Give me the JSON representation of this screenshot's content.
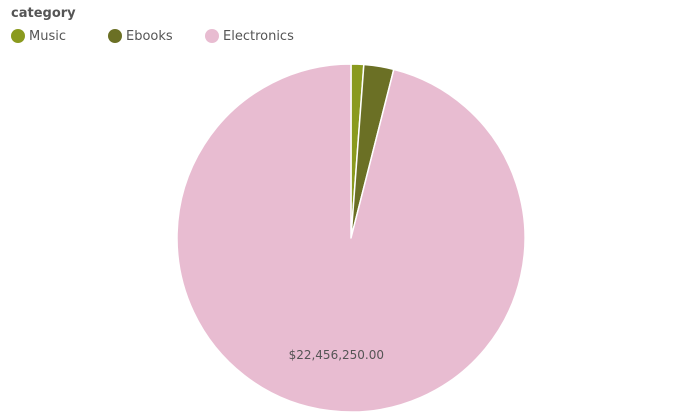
{
  "chart_data": {
    "type": "pie",
    "legend_title": "category",
    "legend_position": "top-left",
    "categories": [
      "Music",
      "Ebooks",
      "Electronics"
    ],
    "values": [
      275000,
      650000,
      22456250
    ],
    "colors": [
      "#8a9a1e",
      "#6b7025",
      "#e8bcd1"
    ],
    "slice_labels": [
      "",
      "",
      "$22,456,250.00"
    ]
  }
}
